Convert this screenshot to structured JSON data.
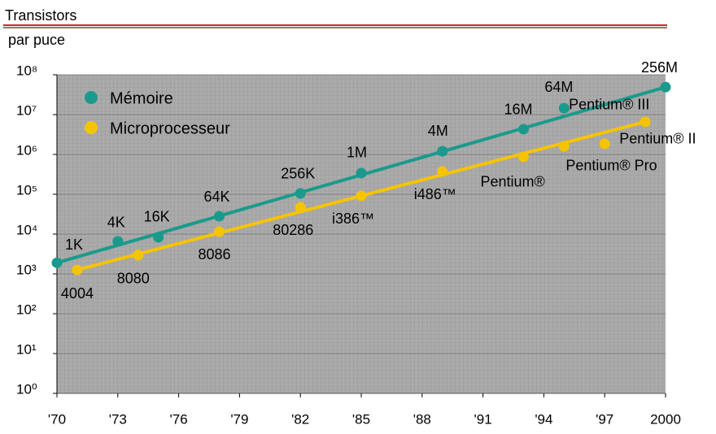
{
  "chart_data": {
    "type": "scatter",
    "ylabel_lines": [
      "Transistors",
      "par puce"
    ],
    "log_y": true,
    "grid": true,
    "legend": "upper left",
    "xlim": [
      1970,
      2000
    ],
    "xticks": [
      {
        "value": 1970,
        "label": "'70"
      },
      {
        "value": 1973,
        "label": "'73"
      },
      {
        "value": 1976,
        "label": "'76"
      },
      {
        "value": 1979,
        "label": "'79"
      },
      {
        "value": 1982,
        "label": "'82"
      },
      {
        "value": 1985,
        "label": "'85"
      },
      {
        "value": 1988,
        "label": "'88"
      },
      {
        "value": 1991,
        "label": "'91"
      },
      {
        "value": 1994,
        "label": "'94"
      },
      {
        "value": 1997,
        "label": "'97"
      },
      2000
    ],
    "ylim": [
      1,
      100000000
    ],
    "yticks": [
      {
        "value": 1,
        "label": "10⁰"
      },
      {
        "value": 10,
        "label": "10¹"
      },
      {
        "value": 100,
        "label": "10²"
      },
      {
        "value": 1000,
        "label": "10³"
      },
      {
        "value": 10000,
        "label": "10⁴"
      },
      {
        "value": 100000,
        "label": "10⁵"
      },
      {
        "value": 1000000,
        "label": "10⁶"
      },
      {
        "value": 10000000,
        "label": "10⁷"
      },
      {
        "value": 100000000,
        "label": "10⁸"
      }
    ],
    "series": [
      {
        "name": "Mémoire",
        "color": "#1a9a8c",
        "x": [
          1970,
          1973,
          1975,
          1978,
          1982,
          1985,
          1989,
          1993,
          1995,
          2000
        ],
        "values": [
          1900,
          6600,
          8300,
          28000,
          105000,
          340000,
          1200000,
          4300000,
          14500000,
          49000000
        ],
        "labels": [
          "1K",
          "4K",
          "16K",
          "64K",
          "256K",
          "1M",
          "4M",
          "16M",
          "64M",
          "256M"
        ]
      },
      {
        "name": "Microprocesseur",
        "color": "#f5c400",
        "x": [
          1971,
          1974,
          1978,
          1982,
          1985,
          1989,
          1993,
          1995,
          1997,
          1999
        ],
        "values": [
          1260,
          2950,
          11500,
          47000,
          91000,
          372000,
          870000,
          1600000,
          1850000,
          6600000
        ],
        "labels": [
          "4004",
          "8080",
          "8086",
          "80286",
          "i386™",
          "i486™",
          "Pentium®",
          "Pentium® Pro",
          "Pentium® II",
          "Pentium® III"
        ]
      }
    ]
  }
}
